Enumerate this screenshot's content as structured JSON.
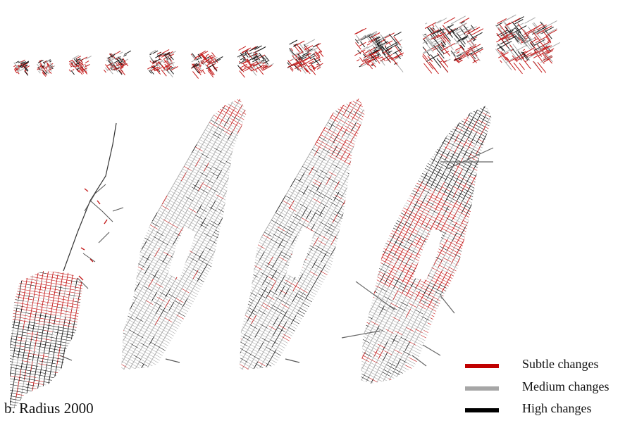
{
  "caption": "b. Radius 2000",
  "legend": [
    {
      "label": "Subtle changes",
      "color": "#c00000"
    },
    {
      "label": "Medium changes",
      "color": "#a6a6a6"
    },
    {
      "label": "High changes",
      "color": "#000000"
    }
  ],
  "palette": {
    "subtle": "#c41c1c",
    "medium": "#a9a9a9",
    "high": "#1a1a1a"
  },
  "thumbnail_count": 12,
  "large_map_count": 4
}
